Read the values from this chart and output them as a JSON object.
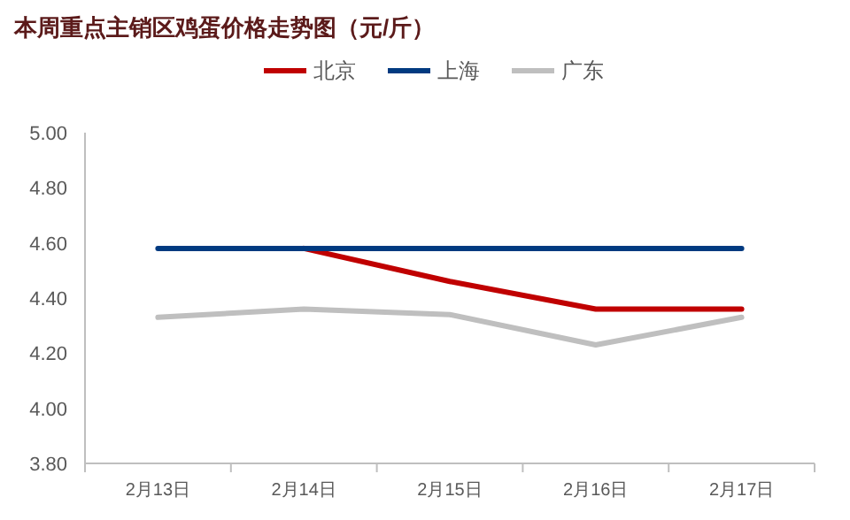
{
  "chart_data": {
    "type": "line",
    "title": "本周重点主销区鸡蛋价格走势图（元/斤）",
    "categories": [
      "2月13日",
      "2月14日",
      "2月15日",
      "2月16日",
      "2月17日"
    ],
    "series": [
      {
        "name": "北京",
        "color": "#c00000",
        "values": [
          null,
          4.58,
          4.46,
          4.36,
          4.36
        ]
      },
      {
        "name": "上海",
        "color": "#003a80",
        "values": [
          4.58,
          4.58,
          4.58,
          4.58,
          4.58
        ]
      },
      {
        "name": "广东",
        "color": "#bfbfbf",
        "values": [
          4.33,
          4.36,
          4.34,
          4.23,
          4.33
        ]
      }
    ],
    "ylim": [
      3.8,
      5.0
    ],
    "yticks": [
      {
        "value": 3.8,
        "label": "3.80"
      },
      {
        "value": 4.0,
        "label": "4.00"
      },
      {
        "value": 4.2,
        "label": "4.20"
      },
      {
        "value": 4.4,
        "label": "4.40"
      },
      {
        "value": 4.6,
        "label": "4.60"
      },
      {
        "value": 4.8,
        "label": "4.80"
      },
      {
        "value": 5.0,
        "label": "5.00"
      }
    ],
    "legend": "top",
    "grid": false,
    "marker": "none",
    "line_style": "solid"
  }
}
